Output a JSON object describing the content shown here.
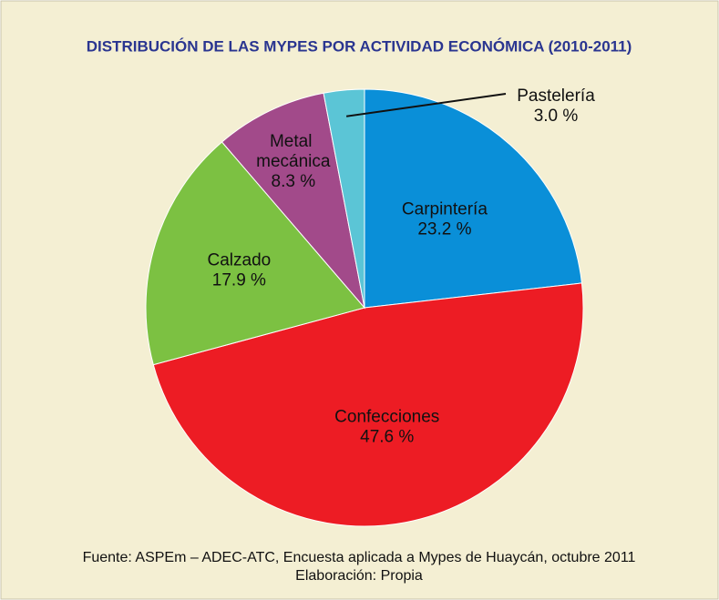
{
  "chart_data": {
    "type": "pie",
    "title": "DISTRIBUCIÓN DE LAS MYPES POR ACTIVIDAD ECONÓMICA (2010-2011)",
    "categories": [
      "Carpintería",
      "Confecciones",
      "Calzado",
      "Metal mecánica",
      "Pastelería"
    ],
    "values": [
      23.2,
      47.6,
      17.9,
      8.3,
      3.0
    ],
    "value_labels": [
      "23.2 %",
      "47.6 %",
      "17.9 %",
      "8.3 %",
      "3.0 %"
    ],
    "colors": [
      "#0a8fd8",
      "#ed1c24",
      "#7cc142",
      "#a24a8a",
      "#5bc5d6"
    ],
    "footnotes": [
      "Fuente: ASPEm – ADEC-ATC, Encuesta aplicada a Mypes de Huaycán, octubre 2011",
      "Elaboración: Propia"
    ]
  }
}
